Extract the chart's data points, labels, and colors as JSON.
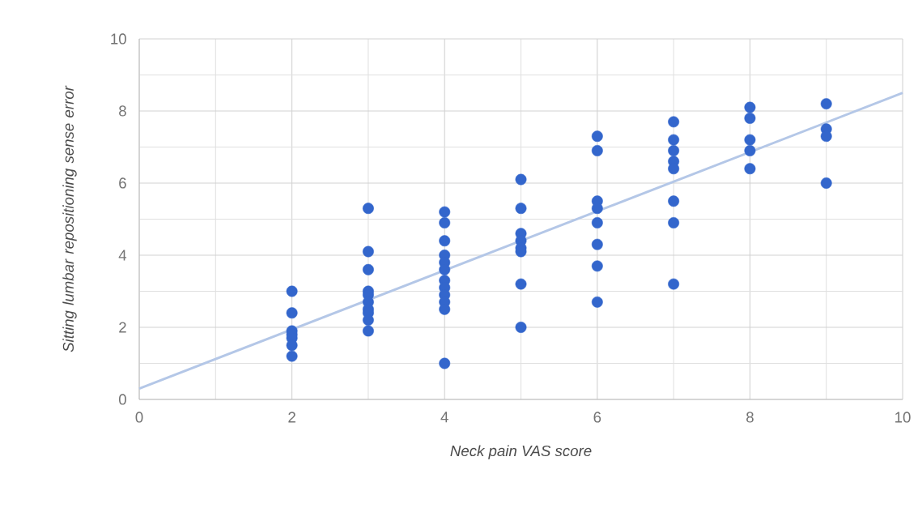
{
  "chart_data": {
    "type": "scatter",
    "xlabel": "Neck pain VAS score",
    "ylabel": "Sitting lumbar repositioning sense error",
    "xlim": [
      0,
      10
    ],
    "ylim": [
      0,
      10
    ],
    "xticks": [
      0,
      2,
      4,
      6,
      8,
      10
    ],
    "yticks": [
      0,
      2,
      4,
      6,
      8,
      10
    ],
    "grid": true,
    "marker": "circle",
    "series": [
      {
        "color": "#3366cc",
        "x": [
          2,
          2,
          2,
          2,
          2,
          2,
          2,
          3,
          3,
          3,
          3,
          3,
          3,
          3,
          3,
          3,
          3,
          4,
          4,
          4,
          4,
          4,
          4,
          4,
          4,
          4,
          4,
          4,
          4,
          5,
          5,
          5,
          5,
          5,
          5,
          5,
          5,
          6,
          6,
          6,
          6,
          6,
          6,
          6,
          6,
          7,
          7,
          7,
          7,
          7,
          7,
          7,
          7,
          8,
          8,
          8,
          8,
          8,
          9,
          9,
          9,
          9
        ],
        "values": [
          3.0,
          2.4,
          1.9,
          1.8,
          1.7,
          1.5,
          1.2,
          5.3,
          4.1,
          3.6,
          3.0,
          2.9,
          2.7,
          2.5,
          2.4,
          2.2,
          1.9,
          5.2,
          4.9,
          4.4,
          4.0,
          3.8,
          3.6,
          3.3,
          3.1,
          2.9,
          2.7,
          2.5,
          1.0,
          6.1,
          5.3,
          4.6,
          4.4,
          4.2,
          4.1,
          3.2,
          2.0,
          7.3,
          6.9,
          5.5,
          5.3,
          4.9,
          4.3,
          3.7,
          2.7,
          7.7,
          7.2,
          6.9,
          6.6,
          6.4,
          5.5,
          4.9,
          3.2,
          8.1,
          7.8,
          7.2,
          6.9,
          6.4,
          8.2,
          7.5,
          7.3,
          6.0
        ]
      },
      {
        "type": "line",
        "marker": "none",
        "color": "#b4c7e7",
        "x": [
          0,
          10
        ],
        "values": [
          0.3,
          8.5
        ]
      }
    ]
  }
}
